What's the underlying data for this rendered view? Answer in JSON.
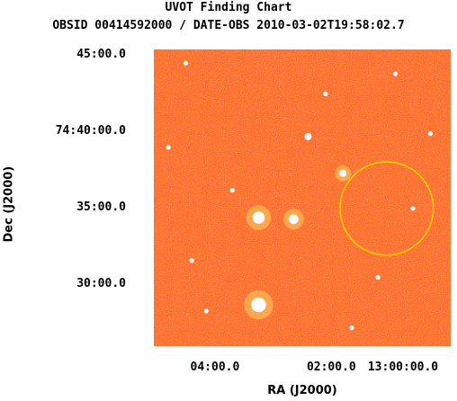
{
  "title": "UVOT Finding Chart",
  "subtitle": "OBSID 00414592000 / DATE-OBS 2010-03-02T19:58:02.7",
  "colors": {
    "background": "#ff5a14",
    "noise_dark": "#5a1a8c",
    "noise_mid": "#c0206a",
    "star": "#ffffff",
    "star_halo": "#ffd060",
    "circle": "#ffd000"
  },
  "chart_data": {
    "type": "scatter",
    "xlabel": "RA (J2000)",
    "ylabel": "Dec (J2000)",
    "x_ticks": [
      {
        "label": "04:00.0",
        "ra_min": 4.0
      },
      {
        "label": "02:00.0",
        "ra_min": 2.0
      },
      {
        "label": "13:00:00.0",
        "ra_min": 0.0
      }
    ],
    "y_ticks": [
      {
        "label": "45:00.0",
        "dec_arcmin": 45.0
      },
      {
        "label": "74:40:00.0",
        "dec_arcmin": 40.0
      },
      {
        "label": "35:00.0",
        "dec_arcmin": 35.0
      },
      {
        "label": "30:00.0",
        "dec_arcmin": 30.0
      }
    ],
    "xlim": [
      5.05,
      -0.05
    ],
    "ylim": [
      26.0,
      45.4
    ],
    "stars": [
      {
        "ra": 1.8,
        "dec": 37.3,
        "mag": 2,
        "halo": true
      },
      {
        "ra": 2.65,
        "dec": 34.3,
        "mag": 3,
        "halo": true
      },
      {
        "ra": 3.25,
        "dec": 34.4,
        "mag": 4,
        "halo": true
      },
      {
        "ra": 3.25,
        "dec": 28.7,
        "mag": 5,
        "halo": true
      },
      {
        "ra": 2.4,
        "dec": 39.7,
        "mag": 2,
        "halo": false
      },
      {
        "ra": 4.4,
        "dec": 31.6,
        "mag": 1,
        "halo": false
      },
      {
        "ra": 4.15,
        "dec": 28.3,
        "mag": 1,
        "halo": false
      },
      {
        "ra": 1.65,
        "dec": 27.2,
        "mag": 1,
        "halo": false
      },
      {
        "ra": 0.3,
        "dec": 39.9,
        "mag": 1,
        "halo": false
      },
      {
        "ra": 0.6,
        "dec": 35.0,
        "mag": 1,
        "halo": false
      },
      {
        "ra": 4.5,
        "dec": 44.5,
        "mag": 1,
        "halo": false
      },
      {
        "ra": 3.7,
        "dec": 36.2,
        "mag": 1,
        "halo": false
      },
      {
        "ra": 1.2,
        "dec": 30.5,
        "mag": 1,
        "halo": false
      },
      {
        "ra": 4.8,
        "dec": 39.0,
        "mag": 1,
        "halo": false
      },
      {
        "ra": 2.1,
        "dec": 42.5,
        "mag": 1,
        "halo": false
      },
      {
        "ra": 0.9,
        "dec": 43.8,
        "mag": 1,
        "halo": false
      }
    ],
    "source_circle": {
      "ra": 1.05,
      "dec": 35.0,
      "radius_arcmin": 3.05
    }
  }
}
